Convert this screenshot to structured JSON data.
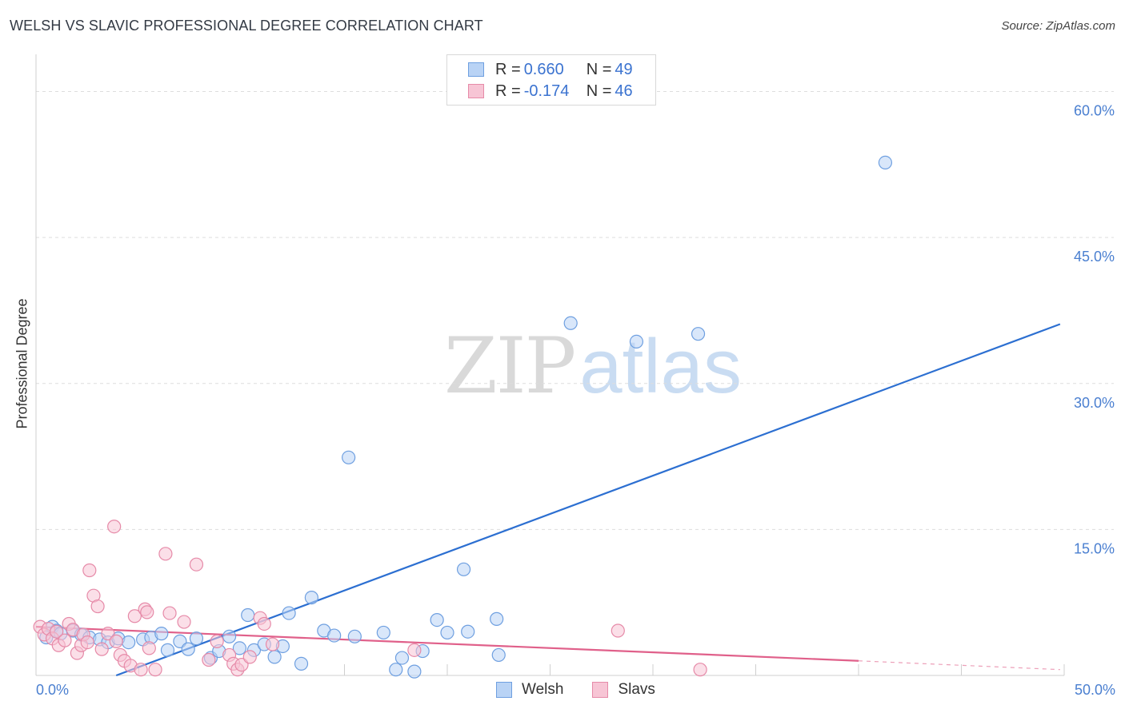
{
  "header": {
    "title": "WELSH VS SLAVIC PROFESSIONAL DEGREE CORRELATION CHART",
    "source": "Source: ZipAtlas.com"
  },
  "watermark": {
    "zip": "ZIP",
    "atlas": "atlas"
  },
  "colors": {
    "welsh_fill": "#b9d3f5",
    "welsh_stroke": "#6e9fe0",
    "welsh_line": "#2c6fd1",
    "slavs_fill": "#f7c5d5",
    "slavs_stroke": "#e68aa8",
    "slavs_line": "#e0608a",
    "grid": "#dddddd",
    "tick_text": "#4a7fd0"
  },
  "legend": {
    "rows": [
      {
        "r_label": "R = ",
        "r_value": "0.660",
        "n_label": "N = ",
        "n_value": "49"
      },
      {
        "r_label": "R = ",
        "r_value": "-0.174",
        "n_label": "N = ",
        "n_value": "46"
      }
    ]
  },
  "bottom_legend": {
    "welsh": "Welsh",
    "slavs": "Slavs"
  },
  "chart_data": {
    "type": "scatter",
    "title": "WELSH VS SLAVIC PROFESSIONAL DEGREE CORRELATION CHART",
    "xlabel": "",
    "ylabel": "Professional Degree",
    "xlim": [
      0,
      50
    ],
    "ylim": [
      0,
      63
    ],
    "x_tick_labels": [
      {
        "value": 0,
        "label": "0.0%"
      },
      {
        "value": 50,
        "label": "50.0%"
      }
    ],
    "y_tick_labels": [
      {
        "value": 15,
        "label": "15.0%"
      },
      {
        "value": 30,
        "label": "30.0%"
      },
      {
        "value": 45,
        "label": "45.0%"
      },
      {
        "value": 60,
        "label": "60.0%"
      }
    ],
    "grid": true,
    "legend_position": "top-center",
    "series": [
      {
        "name": "Welsh",
        "R": 0.66,
        "N": 49,
        "trend": {
          "x": [
            3.9,
            49.8
          ],
          "y": [
            0.0,
            36.1
          ]
        },
        "points": [
          [
            0.5,
            3.9
          ],
          [
            0.8,
            5.0
          ],
          [
            1.0,
            4.6
          ],
          [
            1.2,
            4.3
          ],
          [
            1.8,
            4.6
          ],
          [
            2.2,
            4.2
          ],
          [
            2.6,
            3.9
          ],
          [
            3.1,
            3.7
          ],
          [
            3.5,
            3.4
          ],
          [
            4.0,
            3.8
          ],
          [
            4.5,
            3.4
          ],
          [
            5.2,
            3.7
          ],
          [
            5.6,
            3.9
          ],
          [
            6.1,
            4.3
          ],
          [
            6.4,
            2.6
          ],
          [
            7.0,
            3.5
          ],
          [
            7.4,
            2.7
          ],
          [
            7.8,
            3.8
          ],
          [
            8.5,
            1.8
          ],
          [
            8.9,
            2.5
          ],
          [
            9.4,
            4.0
          ],
          [
            9.9,
            2.8
          ],
          [
            10.3,
            6.2
          ],
          [
            10.6,
            2.6
          ],
          [
            11.1,
            3.2
          ],
          [
            11.6,
            1.9
          ],
          [
            12.0,
            3.0
          ],
          [
            12.3,
            6.4
          ],
          [
            12.9,
            1.2
          ],
          [
            13.4,
            8.0
          ],
          [
            14.0,
            4.6
          ],
          [
            14.5,
            4.1
          ],
          [
            15.2,
            22.4
          ],
          [
            15.5,
            4.0
          ],
          [
            16.9,
            4.4
          ],
          [
            17.5,
            0.6
          ],
          [
            17.8,
            1.8
          ],
          [
            18.4,
            0.4
          ],
          [
            18.8,
            2.5
          ],
          [
            19.5,
            5.7
          ],
          [
            20.0,
            4.4
          ],
          [
            20.8,
            10.9
          ],
          [
            21.0,
            4.5
          ],
          [
            22.4,
            5.8
          ],
          [
            22.5,
            2.1
          ],
          [
            26.0,
            36.2
          ],
          [
            29.2,
            34.3
          ],
          [
            32.2,
            35.1
          ],
          [
            41.3,
            52.7
          ]
        ]
      },
      {
        "name": "Slavs",
        "R": -0.174,
        "N": 46,
        "trend": {
          "x": [
            0.0,
            40.0
          ],
          "y": [
            5.0,
            1.5
          ]
        },
        "trend_dashed": {
          "x": [
            40.0,
            49.8
          ],
          "y": [
            1.5,
            0.6
          ]
        },
        "points": [
          [
            0.2,
            5.0
          ],
          [
            0.4,
            4.2
          ],
          [
            0.6,
            4.8
          ],
          [
            0.8,
            3.8
          ],
          [
            1.0,
            4.5
          ],
          [
            1.1,
            3.1
          ],
          [
            1.4,
            3.6
          ],
          [
            1.6,
            5.3
          ],
          [
            1.8,
            4.7
          ],
          [
            2.0,
            2.3
          ],
          [
            2.2,
            3.1
          ],
          [
            2.3,
            4.2
          ],
          [
            2.5,
            3.4
          ],
          [
            2.6,
            10.8
          ],
          [
            2.8,
            8.2
          ],
          [
            3.0,
            7.1
          ],
          [
            3.2,
            2.7
          ],
          [
            3.5,
            4.3
          ],
          [
            3.8,
            15.3
          ],
          [
            3.9,
            3.5
          ],
          [
            4.1,
            2.1
          ],
          [
            4.3,
            1.5
          ],
          [
            4.6,
            1.0
          ],
          [
            4.8,
            6.1
          ],
          [
            5.1,
            0.6
          ],
          [
            5.3,
            6.8
          ],
          [
            5.4,
            6.5
          ],
          [
            5.5,
            2.8
          ],
          [
            5.8,
            0.6
          ],
          [
            6.3,
            12.5
          ],
          [
            6.5,
            6.4
          ],
          [
            7.2,
            5.5
          ],
          [
            7.8,
            11.4
          ],
          [
            8.4,
            1.6
          ],
          [
            8.8,
            3.5
          ],
          [
            9.4,
            2.1
          ],
          [
            9.6,
            1.2
          ],
          [
            9.8,
            0.6
          ],
          [
            10.0,
            1.1
          ],
          [
            10.4,
            1.9
          ],
          [
            10.9,
            5.9
          ],
          [
            11.1,
            5.3
          ],
          [
            11.5,
            3.2
          ],
          [
            18.4,
            2.6
          ],
          [
            28.3,
            4.6
          ],
          [
            32.3,
            0.6
          ]
        ]
      }
    ]
  }
}
